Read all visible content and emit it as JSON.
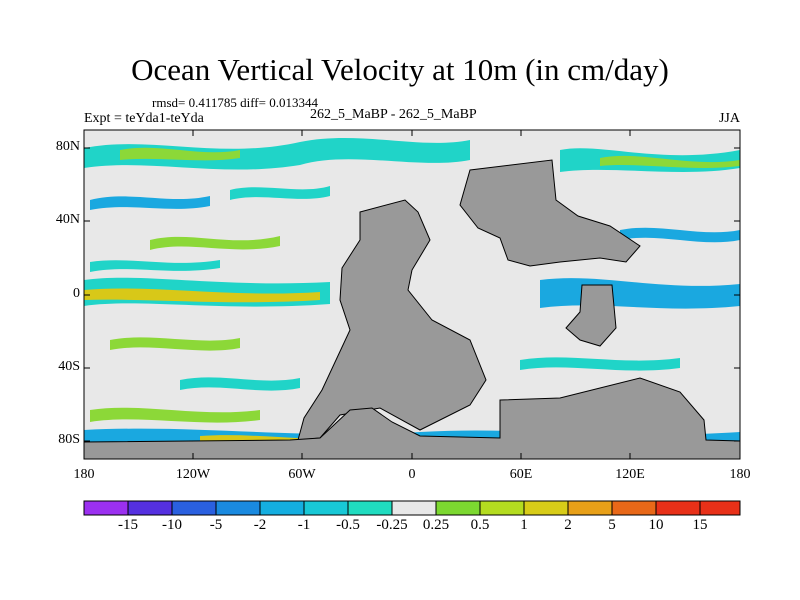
{
  "title": "Ocean Vertical Velocity at 10m (in cm/day)",
  "stats": "rmsd= 0.411785 diff= 0.013344",
  "experiment": "Expt = teYda1-teYda",
  "run_label": "262_5_MaBP - 262_5_MaBP",
  "season": "JJA",
  "lat_ticks": [
    "80N",
    "40N",
    "0",
    "40S",
    "80S"
  ],
  "lon_ticks": [
    "180",
    "120W",
    "60W",
    "0",
    "60E",
    "120E",
    "180"
  ],
  "colorbar": {
    "labels": [
      "-15",
      "-10",
      "-5",
      "-2",
      "-1",
      "-0.5",
      "-0.25",
      "0.25",
      "0.5",
      "1",
      "2",
      "5",
      "10",
      "15"
    ],
    "colors": [
      "#9b30f0",
      "#5530e0",
      "#2a60e0",
      "#1a8ae0",
      "#14aee0",
      "#18c8d6",
      "#20dcc0",
      "#e8e8e8",
      "#7cd830",
      "#b4dc20",
      "#d8cc18",
      "#e8a018",
      "#e86818",
      "#e83018"
    ]
  },
  "map_colors": {
    "land": "#999999",
    "ocean_neutral": "#e8e8e8",
    "upwelling_weak": "#8cd838",
    "upwelling_strong": "#d8c818",
    "downwelling_weak": "#20d4c8",
    "downwelling_strong": "#1aa8e0"
  }
}
